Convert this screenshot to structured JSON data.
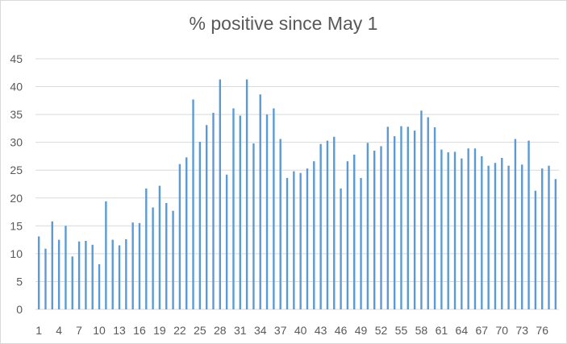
{
  "chart_data": {
    "type": "bar",
    "title": "% positive since May 1",
    "xlabel": "",
    "ylabel": "",
    "ylim": [
      0,
      45
    ],
    "yticks": [
      0,
      5,
      10,
      15,
      20,
      25,
      30,
      35,
      40,
      45
    ],
    "grid": true,
    "legend": "none",
    "bar_color": "#5b9bd5",
    "x_tick_labels": [
      1,
      4,
      7,
      10,
      13,
      16,
      19,
      22,
      25,
      28,
      31,
      34,
      37,
      40,
      43,
      46,
      49,
      52,
      55,
      58,
      61,
      64,
      67,
      70,
      73,
      76
    ],
    "categories": [
      1,
      2,
      3,
      4,
      5,
      6,
      7,
      8,
      9,
      10,
      11,
      12,
      13,
      14,
      15,
      16,
      17,
      18,
      19,
      20,
      21,
      22,
      23,
      24,
      25,
      26,
      27,
      28,
      29,
      30,
      31,
      32,
      33,
      34,
      35,
      36,
      37,
      38,
      39,
      40,
      41,
      42,
      43,
      44,
      45,
      46,
      47,
      48,
      49,
      50,
      51,
      52,
      53,
      54,
      55,
      56,
      57,
      58,
      59,
      60,
      61,
      62,
      63,
      64,
      65,
      66,
      67,
      68,
      69,
      70,
      71,
      72,
      73,
      74,
      75,
      76,
      77,
      78
    ],
    "values": [
      13.1,
      10.9,
      15.8,
      12.5,
      15.0,
      9.5,
      12.2,
      12.3,
      11.6,
      8.1,
      19.4,
      12.5,
      11.5,
      12.6,
      15.6,
      15.5,
      21.7,
      18.3,
      22.2,
      19.1,
      17.7,
      26.1,
      27.3,
      37.7,
      30.1,
      33.1,
      35.3,
      41.3,
      24.2,
      36.1,
      34.8,
      41.3,
      29.8,
      38.6,
      35.0,
      36.1,
      30.6,
      23.6,
      24.8,
      24.5,
      25.3,
      26.6,
      29.7,
      30.3,
      31.0,
      21.7,
      26.6,
      27.8,
      23.6,
      29.9,
      28.5,
      29.3,
      32.8,
      31.1,
      32.9,
      32.8,
      32.1,
      35.7,
      34.5,
      32.7,
      28.7,
      28.2,
      28.3,
      27.1,
      28.9,
      28.9,
      27.5,
      25.8,
      26.3,
      27.2,
      25.8,
      30.6,
      26.0,
      30.3,
      21.3,
      25.3,
      25.8,
      23.4
    ]
  }
}
